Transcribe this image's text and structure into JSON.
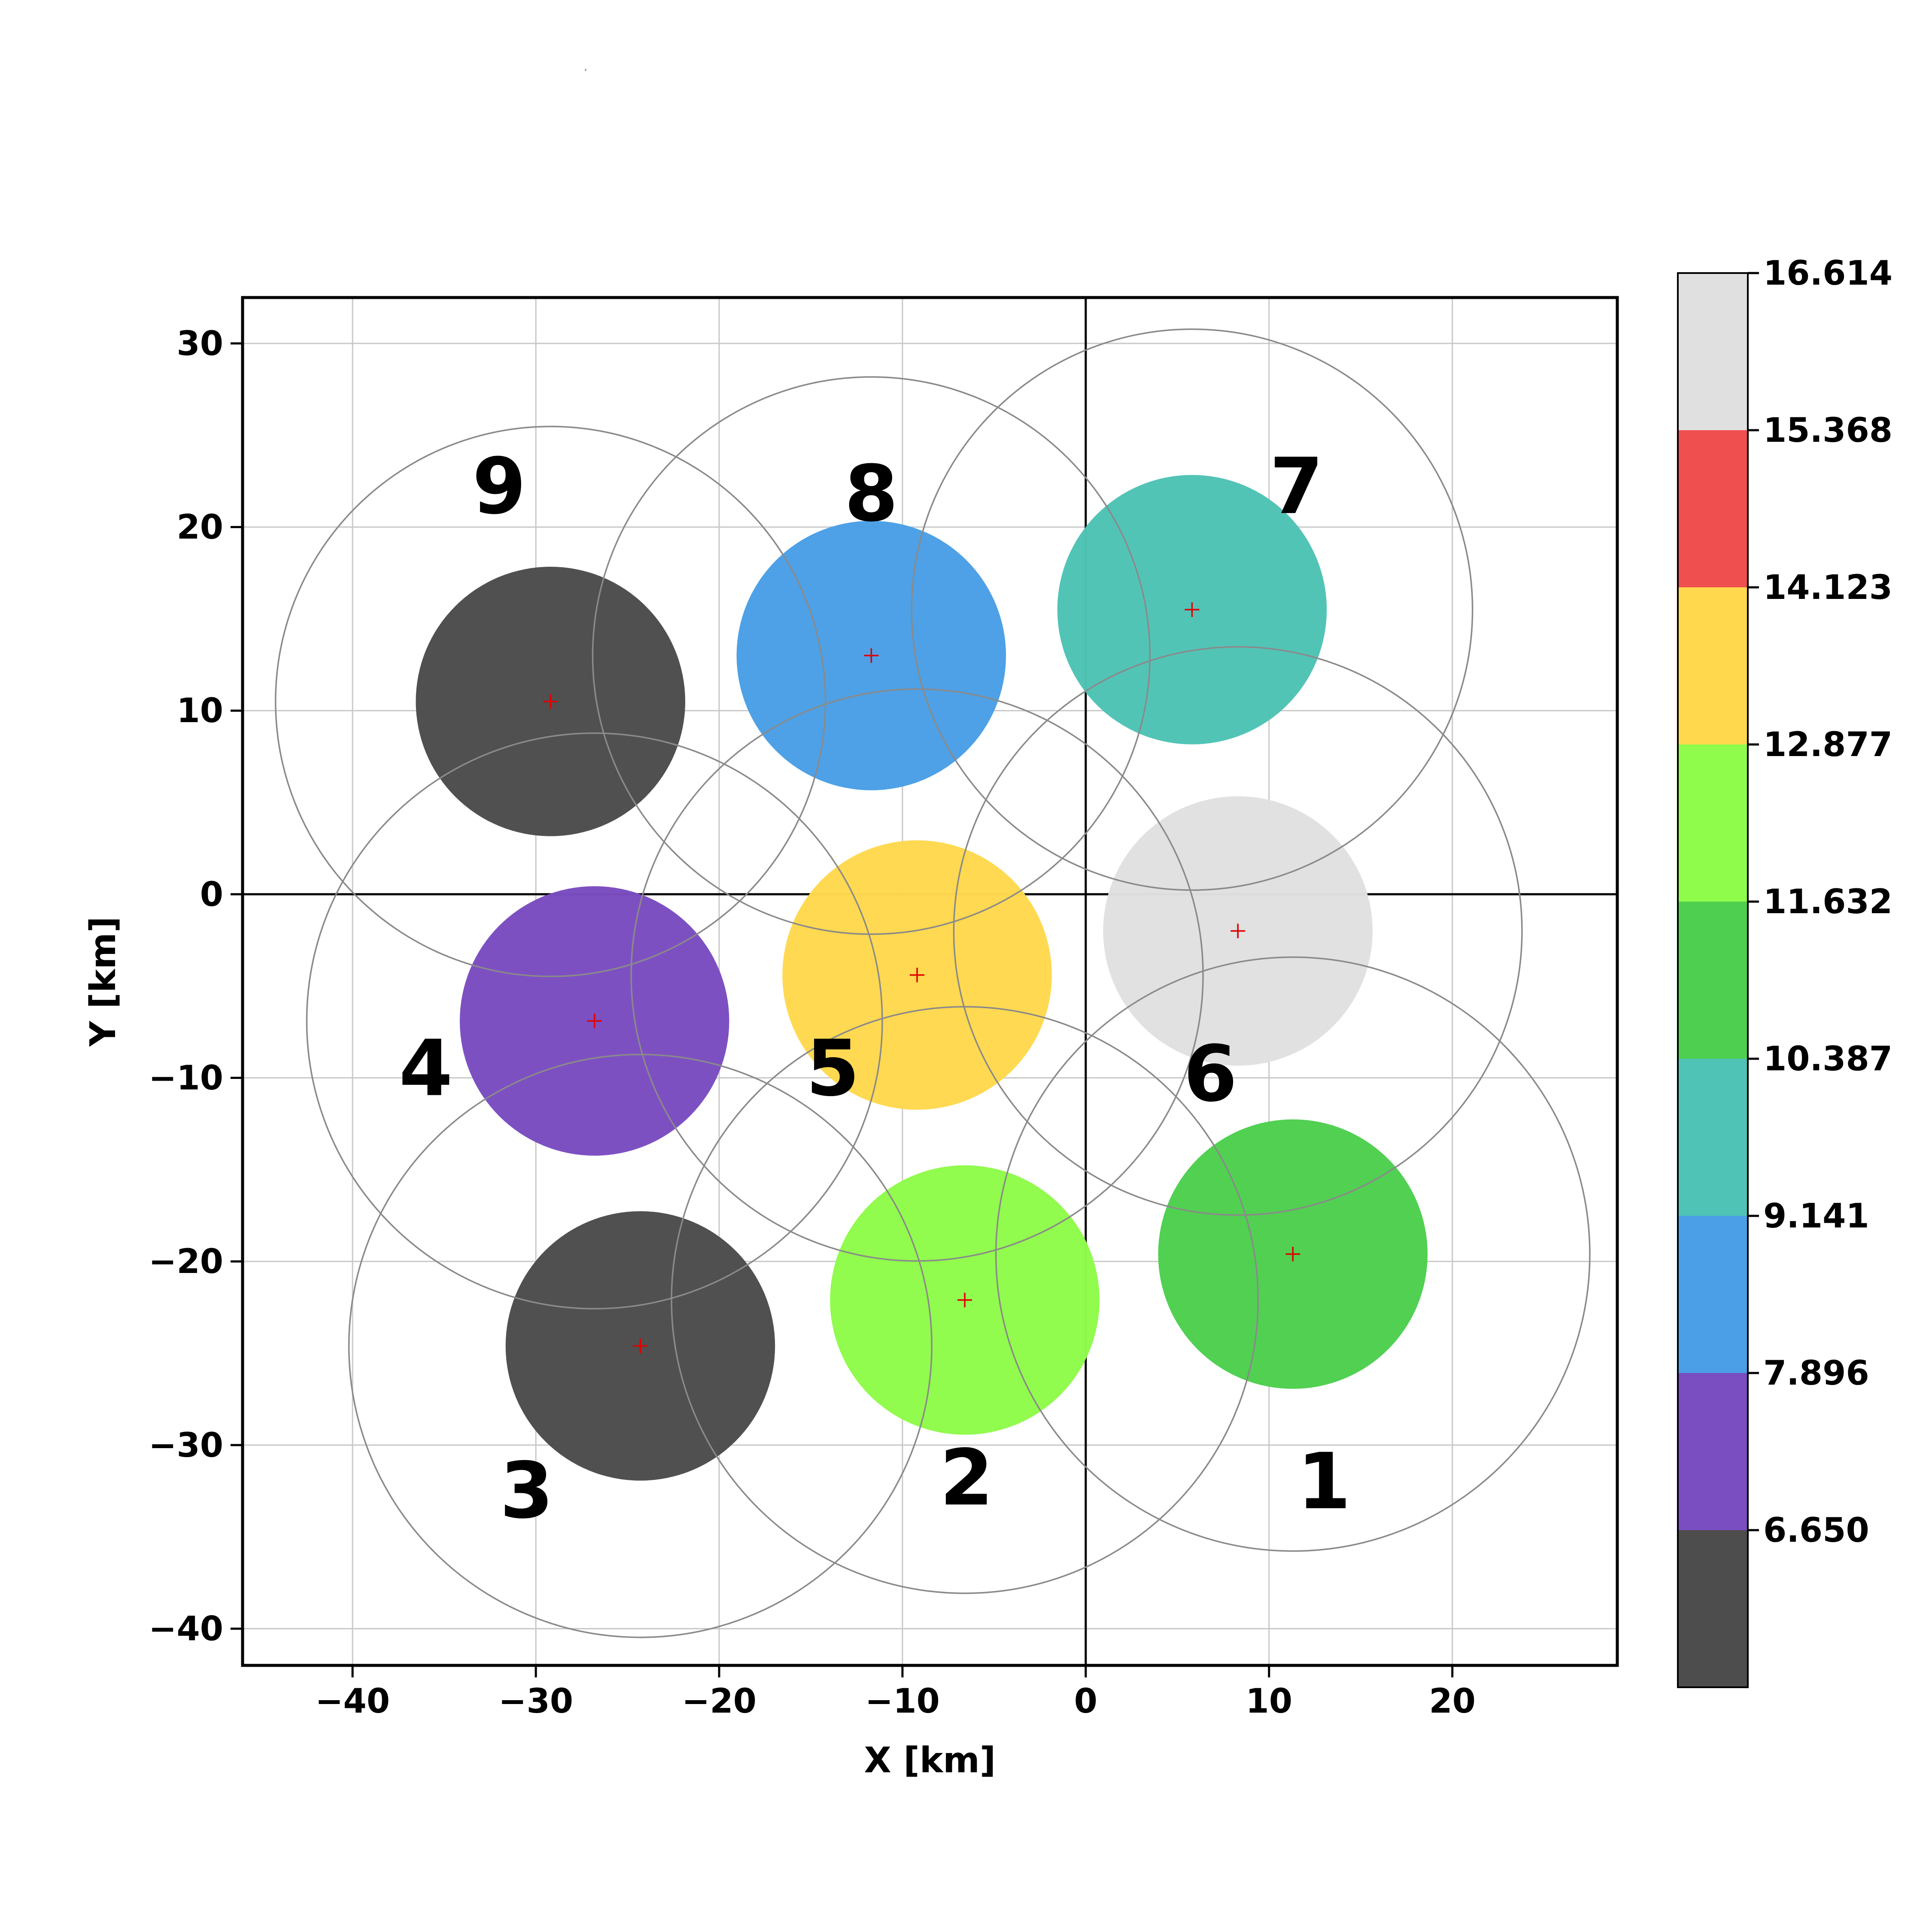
{
  "chart_data": {
    "type": "scatter",
    "title": "",
    "corner_note": "s",
    "xlabel": "X [km]",
    "ylabel": "Y [km]",
    "xlim": [
      -46,
      29
    ],
    "ylim": [
      -42,
      32.5
    ],
    "xticks": [
      -40,
      -30,
      -20,
      -10,
      0,
      10,
      20
    ],
    "yticks": [
      -40,
      -30,
      -20,
      -10,
      0,
      10,
      20,
      30
    ],
    "xtick_labels": [
      "−40",
      "−30",
      "−20",
      "−10",
      "0",
      "10",
      "20"
    ],
    "ytick_labels": [
      "−40",
      "−30",
      "−20",
      "−10",
      "0",
      "10",
      "20",
      "30"
    ],
    "grid": true,
    "zero_lines": true,
    "colorbar": {
      "ticks": [
        "16.614",
        "15.368",
        "14.123",
        "12.877",
        "11.632",
        "10.387",
        "9.141",
        "7.896",
        "6.650"
      ],
      "bands_top_to_bottom": [
        "#e0e0e0",
        "#f04f4f",
        "#ffd84e",
        "#8ffb4a",
        "#4ecf4f",
        "#4fc3b5",
        "#4a9fe6",
        "#7a4dc1",
        "#4d4d4d"
      ]
    },
    "zones": [
      {
        "label": "1",
        "x": 11.3,
        "y": -19.6,
        "inner_radius": 7.35,
        "outer_radius": 16.2,
        "color": "#4ecf4f",
        "label_x": 13.0,
        "label_y": -32.0
      },
      {
        "label": "2",
        "x": -6.6,
        "y": -22.1,
        "inner_radius": 7.35,
        "outer_radius": 16.0,
        "color": "#8ffb4a",
        "label_x": -6.5,
        "label_y": -31.8
      },
      {
        "label": "3",
        "x": -24.3,
        "y": -24.6,
        "inner_radius": 7.35,
        "outer_radius": 15.9,
        "color": "#4d4d4d",
        "label_x": -30.5,
        "label_y": -32.5
      },
      {
        "label": "4",
        "x": -26.8,
        "y": -6.9,
        "inner_radius": 7.35,
        "outer_radius": 15.7,
        "color": "#7a4dc1",
        "label_x": -36.0,
        "label_y": -9.5
      },
      {
        "label": "5",
        "x": -9.2,
        "y": -4.4,
        "inner_radius": 7.35,
        "outer_radius": 15.6,
        "color": "#ffd84e",
        "label_x": -13.8,
        "label_y": -9.5
      },
      {
        "label": "6",
        "x": 8.3,
        "y": -2.0,
        "inner_radius": 7.35,
        "outer_radius": 15.5,
        "color": "#e0e0e0",
        "label_x": 6.8,
        "label_y": -9.8
      },
      {
        "label": "7",
        "x": 5.8,
        "y": 15.5,
        "inner_radius": 7.35,
        "outer_radius": 15.3,
        "color": "#4fc3b5",
        "label_x": 11.5,
        "label_y": 22.2
      },
      {
        "label": "8",
        "x": -11.7,
        "y": 13.0,
        "inner_radius": 7.35,
        "outer_radius": 15.2,
        "color": "#4a9fe6",
        "label_x": -11.7,
        "label_y": 21.8
      },
      {
        "label": "9",
        "x": -29.2,
        "y": 10.5,
        "inner_radius": 7.35,
        "outer_radius": 15.0,
        "color": "#4d4d4d",
        "label_x": -32.0,
        "label_y": 22.2
      }
    ]
  }
}
